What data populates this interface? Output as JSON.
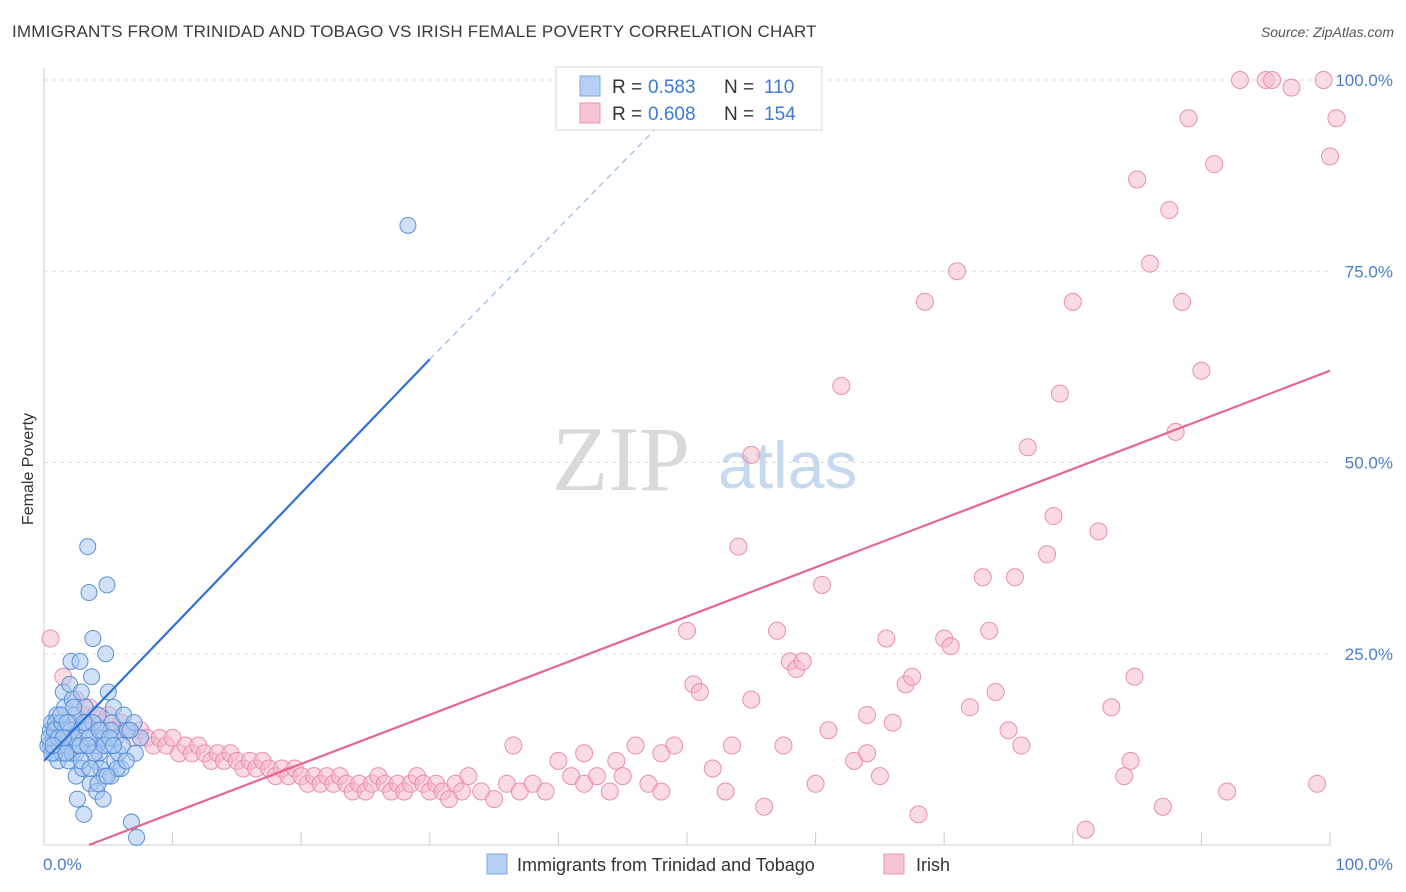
{
  "title": "IMMIGRANTS FROM TRINIDAD AND TOBAGO VS IRISH FEMALE POVERTY CORRELATION CHART",
  "source": "Source: ZipAtlas.com",
  "watermark": {
    "zip": "ZIP",
    "atlas": "atlas"
  },
  "colors": {
    "blue": "#4a86d8",
    "blue_fill": "#a9c8f0",
    "pink": "#e8719a",
    "pink_fill": "#f6b8cb",
    "axis_text": "#4a7ec8"
  },
  "legend": {
    "r_label": "R =",
    "n_label": "N =",
    "rows": [
      {
        "r": "0.583",
        "n": "110"
      },
      {
        "r": "0.608",
        "n": "154"
      }
    ]
  },
  "bottom_legend": {
    "blue": "Immigrants from Trinidad and Tobago",
    "pink": "Irish"
  },
  "chart_data": {
    "type": "scatter",
    "title": "IMMIGRANTS FROM TRINIDAD AND TOBAGO VS IRISH FEMALE POVERTY CORRELATION CHART",
    "xlabel": "",
    "ylabel": "Female Poverty",
    "xlim": [
      0,
      100
    ],
    "ylim": [
      0,
      100
    ],
    "x_ticks": [
      "0.0%",
      "100.0%"
    ],
    "y_ticks": [
      "25.0%",
      "50.0%",
      "75.0%",
      "100.0%"
    ],
    "grid": true,
    "legend_position": "top-center",
    "series": [
      {
        "name": "Immigrants from Trinidad and Tobago",
        "r": 0.583,
        "n": 110,
        "trend": {
          "x": [
            0.0,
            30.0
          ],
          "y": [
            11.0,
            63.5
          ],
          "dashed_to": [
            47.5,
            93.5
          ]
        },
        "points": [
          [
            0.5,
            15
          ],
          [
            0.5,
            13
          ],
          [
            0.6,
            16
          ],
          [
            0.7,
            14
          ],
          [
            0.8,
            12
          ],
          [
            0.9,
            15
          ],
          [
            1,
            17
          ],
          [
            1,
            13
          ],
          [
            1.1,
            11
          ],
          [
            1.2,
            14
          ],
          [
            1.3,
            16
          ],
          [
            1.4,
            12
          ],
          [
            1.5,
            15
          ],
          [
            1.5,
            20
          ],
          [
            1.6,
            18
          ],
          [
            1.7,
            14
          ],
          [
            1.8,
            13
          ],
          [
            1.9,
            11
          ],
          [
            2,
            16
          ],
          [
            2,
            21
          ],
          [
            2.1,
            24
          ],
          [
            2.2,
            19
          ],
          [
            2.3,
            14
          ],
          [
            2.4,
            17
          ],
          [
            2.5,
            12
          ],
          [
            2.5,
            9
          ],
          [
            2.6,
            6
          ],
          [
            2.7,
            15
          ],
          [
            2.8,
            24
          ],
          [
            2.9,
            20
          ],
          [
            3,
            13
          ],
          [
            3,
            10
          ],
          [
            3.1,
            4
          ],
          [
            3.2,
            18
          ],
          [
            3.3,
            16
          ],
          [
            3.4,
            39
          ],
          [
            3.5,
            33
          ],
          [
            3.6,
            8
          ],
          [
            3.7,
            22
          ],
          [
            3.8,
            27
          ],
          [
            3.9,
            14
          ],
          [
            4,
            11
          ],
          [
            4.1,
            7
          ],
          [
            4.2,
            17
          ],
          [
            4.3,
            12
          ],
          [
            4.4,
            10
          ],
          [
            4.5,
            15
          ],
          [
            4.6,
            6
          ],
          [
            4.7,
            9
          ],
          [
            4.8,
            25
          ],
          [
            4.9,
            34
          ],
          [
            5,
            20
          ],
          [
            5.1,
            13
          ],
          [
            5.2,
            9
          ],
          [
            5.3,
            16
          ],
          [
            5.4,
            18
          ],
          [
            5.5,
            11
          ],
          [
            5.6,
            14
          ],
          [
            5.8,
            12
          ],
          [
            6,
            10
          ],
          [
            6.2,
            17
          ],
          [
            6.5,
            15
          ],
          [
            6.8,
            3
          ],
          [
            7,
            16
          ],
          [
            7.2,
            1
          ],
          [
            7.5,
            14
          ],
          [
            0.3,
            13
          ],
          [
            0.4,
            14
          ],
          [
            0.6,
            12
          ],
          [
            0.9,
            16
          ],
          [
            1.2,
            13
          ],
          [
            1.6,
            15
          ],
          [
            1.9,
            14
          ],
          [
            2.2,
            12
          ],
          [
            2.6,
            13
          ],
          [
            3.3,
            15
          ],
          [
            3.8,
            16
          ],
          [
            4.1,
            13
          ],
          [
            4.6,
            14
          ],
          [
            5.2,
            15
          ],
          [
            0.8,
            15
          ],
          [
            1.1,
            14
          ],
          [
            1.4,
            16
          ],
          [
            1.7,
            12
          ],
          [
            2.1,
            15
          ],
          [
            2.4,
            14
          ],
          [
            2.8,
            13
          ],
          [
            3.1,
            16
          ],
          [
            3.5,
            14
          ],
          [
            3.9,
            12
          ],
          [
            4.3,
            15
          ],
          [
            4.7,
            13
          ],
          [
            5.1,
            14
          ],
          [
            5.7,
            10
          ],
          [
            6.1,
            13
          ],
          [
            6.7,
            15
          ],
          [
            7.1,
            12
          ],
          [
            28.3,
            81
          ],
          [
            1.3,
            17
          ],
          [
            1.5,
            14
          ],
          [
            2.3,
            18
          ],
          [
            2.9,
            11
          ],
          [
            3.6,
            10
          ],
          [
            4.2,
            8
          ],
          [
            4.9,
            9
          ],
          [
            5.4,
            13
          ],
          [
            6.4,
            11
          ],
          [
            0.7,
            13
          ],
          [
            1.8,
            16
          ],
          [
            3.4,
            13
          ]
        ]
      },
      {
        "name": "Irish",
        "r": 0.608,
        "n": 154,
        "trend": {
          "x": [
            3.5,
            100.0
          ],
          "y": [
            0.0,
            62.0
          ]
        },
        "points": [
          [
            0.5,
            27
          ],
          [
            1.5,
            22
          ],
          [
            2.5,
            19
          ],
          [
            3,
            17
          ],
          [
            3.5,
            18
          ],
          [
            4,
            17
          ],
          [
            4.5,
            16
          ],
          [
            5,
            17
          ],
          [
            5.5,
            15
          ],
          [
            6,
            16
          ],
          [
            6.5,
            15
          ],
          [
            7,
            14
          ],
          [
            7.5,
            15
          ],
          [
            8,
            14
          ],
          [
            8.5,
            13
          ],
          [
            9,
            14
          ],
          [
            9.5,
            13
          ],
          [
            10,
            14
          ],
          [
            10.5,
            12
          ],
          [
            11,
            13
          ],
          [
            11.5,
            12
          ],
          [
            12,
            13
          ],
          [
            12.5,
            12
          ],
          [
            13,
            11
          ],
          [
            13.5,
            12
          ],
          [
            14,
            11
          ],
          [
            14.5,
            12
          ],
          [
            15,
            11
          ],
          [
            15.5,
            10
          ],
          [
            16,
            11
          ],
          [
            16.5,
            10
          ],
          [
            17,
            11
          ],
          [
            17.5,
            10
          ],
          [
            18,
            9
          ],
          [
            18.5,
            10
          ],
          [
            19,
            9
          ],
          [
            19.5,
            10
          ],
          [
            20,
            9
          ],
          [
            20.5,
            8
          ],
          [
            21,
            9
          ],
          [
            21.5,
            8
          ],
          [
            22,
            9
          ],
          [
            22.5,
            8
          ],
          [
            23,
            9
          ],
          [
            23.5,
            8
          ],
          [
            24,
            7
          ],
          [
            24.5,
            8
          ],
          [
            25,
            7
          ],
          [
            25.5,
            8
          ],
          [
            26,
            9
          ],
          [
            26.5,
            8
          ],
          [
            27,
            7
          ],
          [
            27.5,
            8
          ],
          [
            28,
            7
          ],
          [
            28.5,
            8
          ],
          [
            29,
            9
          ],
          [
            29.5,
            8
          ],
          [
            30,
            7
          ],
          [
            30.5,
            8
          ],
          [
            31,
            7
          ],
          [
            31.5,
            6
          ],
          [
            32,
            8
          ],
          [
            32.5,
            7
          ],
          [
            33,
            9
          ],
          [
            34,
            7
          ],
          [
            35,
            6
          ],
          [
            36,
            8
          ],
          [
            36.5,
            13
          ],
          [
            37,
            7
          ],
          [
            38,
            8
          ],
          [
            39,
            7
          ],
          [
            40,
            11
          ],
          [
            41,
            9
          ],
          [
            42,
            8
          ],
          [
            43,
            9
          ],
          [
            44,
            7
          ],
          [
            44.5,
            11
          ],
          [
            45,
            9
          ],
          [
            46,
            13
          ],
          [
            47,
            8
          ],
          [
            48,
            7
          ],
          [
            49,
            13
          ],
          [
            50,
            28
          ],
          [
            50.5,
            21
          ],
          [
            51,
            20
          ],
          [
            52,
            10
          ],
          [
            53,
            7
          ],
          [
            53.5,
            13
          ],
          [
            54,
            39
          ],
          [
            55,
            19
          ],
          [
            56,
            5
          ],
          [
            57,
            28
          ],
          [
            57.5,
            13
          ],
          [
            58,
            24
          ],
          [
            58.5,
            23
          ],
          [
            59,
            24
          ],
          [
            60,
            8
          ],
          [
            60.5,
            34
          ],
          [
            61,
            15
          ],
          [
            62,
            60
          ],
          [
            63,
            11
          ],
          [
            64,
            17
          ],
          [
            65,
            9
          ],
          [
            65.5,
            27
          ],
          [
            66,
            16
          ],
          [
            67,
            21
          ],
          [
            67.5,
            22
          ],
          [
            68,
            4
          ],
          [
            68.5,
            71
          ],
          [
            70,
            27
          ],
          [
            70.5,
            26
          ],
          [
            71,
            75
          ],
          [
            72,
            18
          ],
          [
            73,
            35
          ],
          [
            73.5,
            28
          ],
          [
            74,
            20
          ],
          [
            75,
            15
          ],
          [
            75.5,
            35
          ],
          [
            76,
            13
          ],
          [
            76.5,
            52
          ],
          [
            78,
            38
          ],
          [
            78.5,
            43
          ],
          [
            79,
            59
          ],
          [
            80,
            71
          ],
          [
            81,
            2
          ],
          [
            82,
            41
          ],
          [
            83,
            18
          ],
          [
            84,
            9
          ],
          [
            84.5,
            11
          ],
          [
            84.8,
            22
          ],
          [
            85,
            87
          ],
          [
            86,
            76
          ],
          [
            87,
            5
          ],
          [
            87.5,
            83
          ],
          [
            88,
            54
          ],
          [
            88.5,
            71
          ],
          [
            89,
            95
          ],
          [
            90,
            62
          ],
          [
            91,
            89
          ],
          [
            92,
            7
          ],
          [
            93,
            100
          ],
          [
            95,
            100
          ],
          [
            95.5,
            100
          ],
          [
            97,
            99
          ],
          [
            99,
            8
          ],
          [
            99.5,
            100
          ],
          [
            100,
            90
          ],
          [
            100.5,
            95
          ],
          [
            55,
            51
          ],
          [
            64,
            12
          ],
          [
            48,
            12
          ],
          [
            42,
            12
          ]
        ]
      }
    ]
  }
}
